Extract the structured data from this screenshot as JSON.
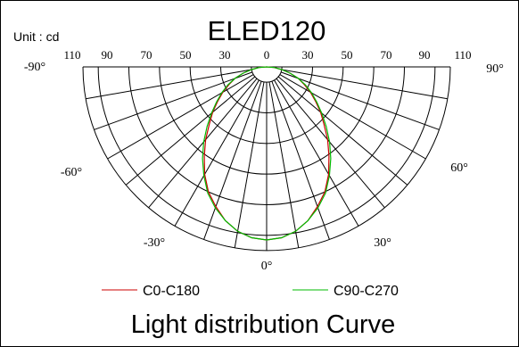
{
  "chart_data": {
    "type": "polar",
    "title": "ELED120",
    "subtitle": "Light distribution Curve",
    "unit_label": "Unit : cd",
    "angle_labels": [
      "-90°",
      "-60°",
      "-30°",
      "0°",
      "30°",
      "60°",
      "90°"
    ],
    "radial_ticks": [
      110,
      90,
      70,
      50,
      30,
      0,
      30,
      50,
      70,
      90,
      110
    ],
    "rmax": 120,
    "angles_deg": [
      0,
      5,
      10,
      15,
      20,
      25,
      30,
      35,
      40,
      45,
      50,
      55,
      60,
      65,
      70,
      75,
      80,
      85,
      90
    ],
    "series": [
      {
        "name": "C0-C180",
        "color": "#cc0000",
        "values": [
          113,
          112,
          109,
          104,
          97,
          90,
          81,
          71,
          62,
          53,
          46,
          39,
          33,
          27,
          22,
          16,
          10,
          5,
          0
        ]
      },
      {
        "name": "C90-C270",
        "color": "#00bb00",
        "values": [
          113,
          112,
          109,
          104,
          98,
          91,
          82,
          73,
          64,
          55,
          47,
          40,
          34,
          28,
          22,
          16,
          10,
          5,
          0
        ]
      }
    ],
    "legend": "bottom",
    "grid": true
  }
}
